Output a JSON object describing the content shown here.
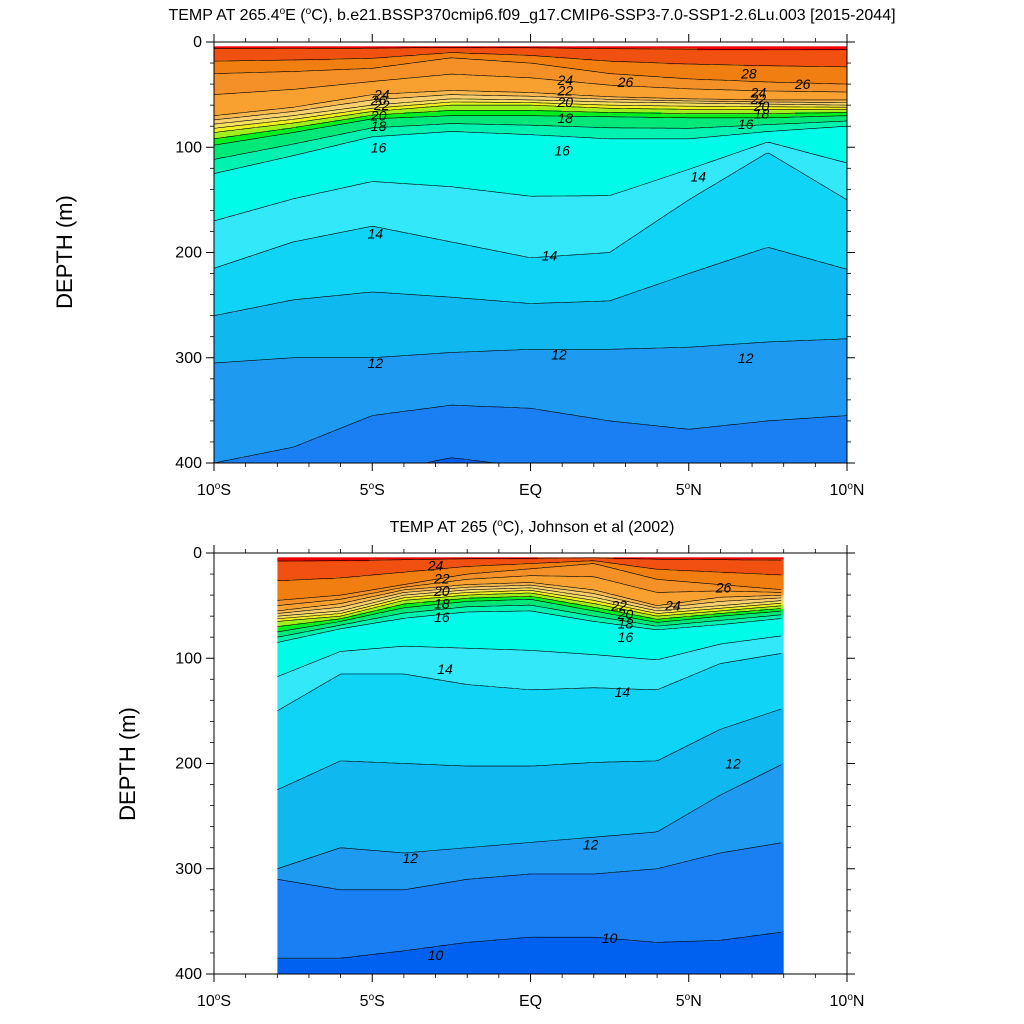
{
  "chart_data": [
    {
      "type": "contour",
      "title": "TEMP AT 265.4°E (°C), b.e21.BSSP370cmip6.f09_g17.CMIP6-SSP3-7.0-SSP1-2.6Lu.003 [2015-2044]",
      "title_parts": {
        "pre": "TEMP AT 265.4",
        "deg1": "o",
        "mid": "E (",
        "deg2": "o",
        "post": "C), b.e21.BSSP370cmip6.f09_g17.CMIP6-SSP3-7.0-SSP1-2.6Lu.003 [2015-2044]"
      },
      "xlabel": "",
      "ylabel": "DEPTH (m)",
      "xlim": [
        -10,
        10
      ],
      "ylim": [
        0,
        400
      ],
      "y_inverted": true,
      "data_x_range": [
        -10,
        10
      ],
      "x_ticks": [
        {
          "value": -10,
          "label": "10°S"
        },
        {
          "value": -5,
          "label": "5°S"
        },
        {
          "value": 0,
          "label": "EQ"
        },
        {
          "value": 5,
          "label": "5°N"
        },
        {
          "value": 10,
          "label": "10°N"
        }
      ],
      "y_ticks": [
        0,
        100,
        200,
        300,
        400
      ],
      "contour_interval": 1,
      "isotherm_x": [
        -10,
        -7.5,
        -5,
        -2.5,
        0,
        2.5,
        5,
        7.5,
        10
      ],
      "isotherms": [
        {
          "level": 26,
          "depth": [
            30,
            28,
            25,
            15,
            20,
            30,
            35,
            38,
            40
          ]
        },
        {
          "level": 24,
          "depth": [
            70,
            62,
            50,
            46,
            48,
            52,
            54,
            55,
            55
          ]
        },
        {
          "level": 22,
          "depth": [
            78,
            70,
            60,
            54,
            55,
            57,
            58,
            59,
            60
          ]
        },
        {
          "level": 20,
          "depth": [
            86,
            77,
            66,
            60,
            60,
            63,
            64,
            64,
            64
          ]
        },
        {
          "level": 18,
          "depth": [
            98,
            86,
            73,
            70,
            70,
            71,
            72,
            72,
            70
          ]
        },
        {
          "level": 16,
          "depth": [
            125,
            108,
            90,
            85,
            88,
            92,
            92,
            85,
            80
          ]
        },
        {
          "level": 14,
          "depth": [
            215,
            190,
            175,
            190,
            205,
            200,
            150,
            105,
            150
          ]
        },
        {
          "level": 12,
          "depth": [
            305,
            300,
            300,
            295,
            292,
            292,
            290,
            285,
            282
          ]
        },
        {
          "level": 11,
          "depth": [
            400,
            385,
            355,
            345,
            348,
            360,
            368,
            360,
            355
          ]
        }
      ],
      "contour_labels": [
        {
          "x": -4.8,
          "y": 55,
          "text": "26"
        },
        {
          "x": 3.0,
          "y": 38,
          "text": "26"
        },
        {
          "x": 6.9,
          "y": 30,
          "text": "28"
        },
        {
          "x": 8.6,
          "y": 40,
          "text": "26"
        },
        {
          "x": -4.7,
          "y": 50,
          "text": "24"
        },
        {
          "x": 1.1,
          "y": 36,
          "text": "24"
        },
        {
          "x": 7.2,
          "y": 48,
          "text": "24"
        },
        {
          "x": -4.7,
          "y": 60,
          "text": "22"
        },
        {
          "x": 1.1,
          "y": 46,
          "text": "22"
        },
        {
          "x": 7.2,
          "y": 54,
          "text": "22"
        },
        {
          "x": -4.8,
          "y": 70,
          "text": "20"
        },
        {
          "x": 1.1,
          "y": 57,
          "text": "20"
        },
        {
          "x": 7.3,
          "y": 61,
          "text": "20"
        },
        {
          "x": -4.8,
          "y": 80,
          "text": "18"
        },
        {
          "x": 1.1,
          "y": 72,
          "text": "18"
        },
        {
          "x": 7.3,
          "y": 68,
          "text": "18"
        },
        {
          "x": -4.8,
          "y": 100,
          "text": "16"
        },
        {
          "x": 1.0,
          "y": 103,
          "text": "16"
        },
        {
          "x": 6.8,
          "y": 78,
          "text": "16"
        },
        {
          "x": -4.9,
          "y": 182,
          "text": "14"
        },
        {
          "x": 0.6,
          "y": 203,
          "text": "14"
        },
        {
          "x": 5.3,
          "y": 128,
          "text": "14"
        },
        {
          "x": -4.9,
          "y": 305,
          "text": "12"
        },
        {
          "x": 0.9,
          "y": 297,
          "text": "12"
        },
        {
          "x": 6.8,
          "y": 300,
          "text": "12"
        }
      ]
    },
    {
      "type": "contour",
      "title": "TEMP AT 265 (°C), Johnson et al (2002)",
      "title_parts": {
        "pre": "TEMP AT 265 (",
        "deg1": "o",
        "mid": "C), Johnson et al (2002)",
        "deg2": "",
        "post": ""
      },
      "xlabel": "",
      "ylabel": "DEPTH (m)",
      "xlim": [
        -10,
        10
      ],
      "ylim": [
        0,
        400
      ],
      "y_inverted": true,
      "data_x_range": [
        -8,
        8
      ],
      "x_ticks": [
        {
          "value": -10,
          "label": "10°S"
        },
        {
          "value": -5,
          "label": "5°S"
        },
        {
          "value": 0,
          "label": "EQ"
        },
        {
          "value": 5,
          "label": "5°N"
        },
        {
          "value": 10,
          "label": "10°N"
        }
      ],
      "y_ticks": [
        0,
        100,
        200,
        300,
        400
      ],
      "contour_interval": 1,
      "isotherm_x": [
        -8,
        -6,
        -4,
        -2,
        0,
        2,
        4,
        6,
        8
      ],
      "isotherms": [
        {
          "level": 26,
          "depth": [
            45,
            40,
            30,
            20,
            15,
            10,
            25,
            30,
            35
          ]
        },
        {
          "level": 24,
          "depth": [
            55,
            48,
            35,
            30,
            28,
            35,
            50,
            42,
            40
          ]
        },
        {
          "level": 22,
          "depth": [
            60,
            55,
            40,
            35,
            33,
            42,
            55,
            50,
            45
          ]
        },
        {
          "level": 20,
          "depth": [
            65,
            60,
            45,
            40,
            38,
            48,
            60,
            55,
            50
          ]
        },
        {
          "level": 18,
          "depth": [
            75,
            65,
            52,
            46,
            44,
            55,
            66,
            60,
            55
          ]
        },
        {
          "level": 16,
          "depth": [
            85,
            72,
            62,
            56,
            55,
            65,
            73,
            68,
            62
          ]
        },
        {
          "level": 14,
          "depth": [
            150,
            115,
            115,
            125,
            130,
            128,
            130,
            105,
            95
          ]
        },
        {
          "level": 12,
          "depth": [
            300,
            280,
            285,
            280,
            275,
            270,
            265,
            230,
            200
          ]
        },
        {
          "level": 11,
          "depth": [
            310,
            320,
            320,
            310,
            305,
            305,
            300,
            285,
            275
          ]
        },
        {
          "level": 10,
          "depth": [
            385,
            385,
            378,
            370,
            365,
            365,
            370,
            368,
            360
          ]
        }
      ],
      "contour_labels": [
        {
          "x": -3.0,
          "y": 12,
          "text": "24"
        },
        {
          "x": 6.1,
          "y": 33,
          "text": "26"
        },
        {
          "x": 4.5,
          "y": 50,
          "text": "24"
        },
        {
          "x": -2.8,
          "y": 24,
          "text": "22"
        },
        {
          "x": 2.8,
          "y": 50,
          "text": "22"
        },
        {
          "x": -2.8,
          "y": 36,
          "text": "20"
        },
        {
          "x": 3.0,
          "y": 58,
          "text": "20"
        },
        {
          "x": -2.8,
          "y": 48,
          "text": "18"
        },
        {
          "x": 3.0,
          "y": 67,
          "text": "18"
        },
        {
          "x": -2.8,
          "y": 61,
          "text": "16"
        },
        {
          "x": 3.0,
          "y": 80,
          "text": "16"
        },
        {
          "x": -2.7,
          "y": 110,
          "text": "14"
        },
        {
          "x": 2.9,
          "y": 132,
          "text": "14"
        },
        {
          "x": 6.4,
          "y": 200,
          "text": "12"
        },
        {
          "x": 1.9,
          "y": 277,
          "text": "12"
        },
        {
          "x": -3.8,
          "y": 290,
          "text": "12"
        },
        {
          "x": -3.0,
          "y": 382,
          "text": "10"
        },
        {
          "x": 2.5,
          "y": 366,
          "text": "10"
        }
      ]
    }
  ],
  "palette": {
    "8": "#0044ee",
    "9": "#0060f0",
    "10": "#1a7ff2",
    "11": "#1e9bf0",
    "12": "#10b8f0",
    "13": "#10d4f5",
    "14": "#33e8f8",
    "15": "#00fbe8",
    "16": "#00f2b0",
    "17": "#00e878",
    "18": "#00f020",
    "19": "#a0f020",
    "20": "#f0f020",
    "21": "#f8e060",
    "22": "#f8d070",
    "23": "#f8b850",
    "24": "#f8a030",
    "25": "#f49028",
    "26": "#f07e10",
    "27": "#f05010",
    "28": "#f00000",
    "29": "#d80000"
  }
}
